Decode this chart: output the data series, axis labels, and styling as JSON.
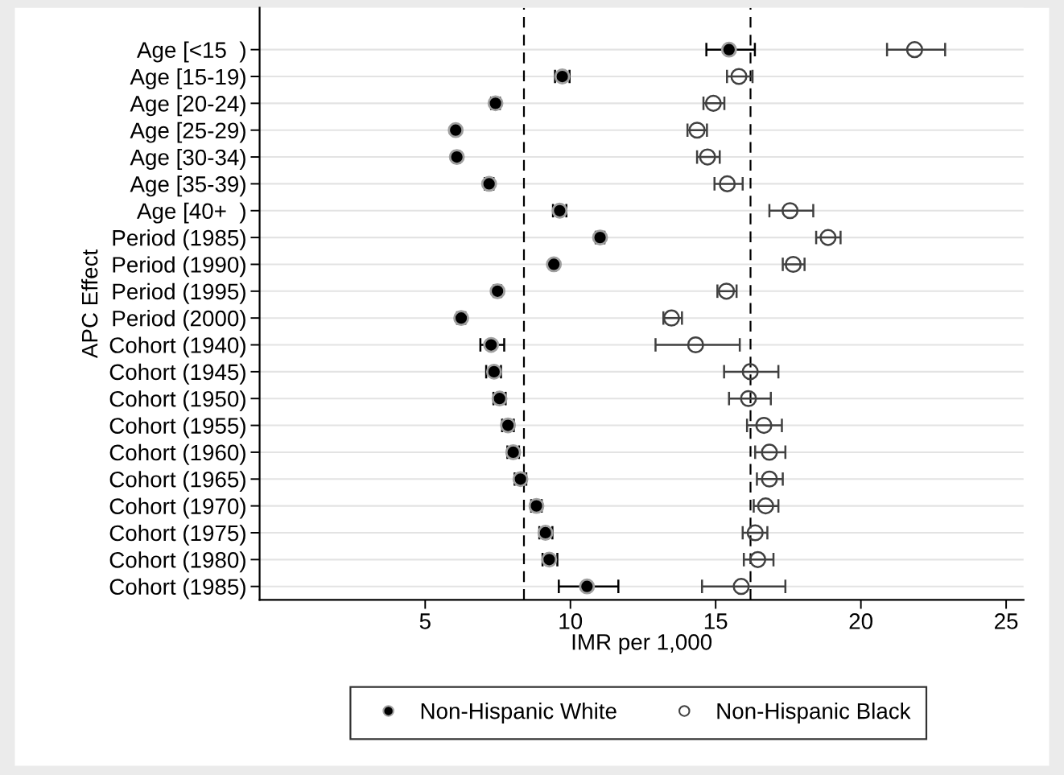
{
  "chart_data": {
    "type": "scatter",
    "orientation": "horizontal",
    "xlabel": "IMR per 1,000",
    "ylabel": "APC Effect",
    "categories": [
      "Age [<15  )",
      "Age [15-19)",
      "Age [20-24)",
      "Age [25-29)",
      "Age [30-34)",
      "Age [35-39)",
      "Age [40+  )",
      "Period (1985)",
      "Period (1990)",
      "Period (1995)",
      "Period (2000)",
      "Cohort (1940)",
      "Cohort (1945)",
      "Cohort (1950)",
      "Cohort (1955)",
      "Cohort (1960)",
      "Cohort (1965)",
      "Cohort (1970)",
      "Cohort (1975)",
      "Cohort (1980)",
      "Cohort (1985)"
    ],
    "series": [
      {
        "name": "Non-Hispanic White",
        "color": "#000000",
        "marker": "circle",
        "values": [
          15.46,
          9.72,
          7.42,
          6.05,
          6.09,
          7.2,
          9.63,
          11.02,
          9.43,
          7.49,
          6.24,
          7.27,
          7.37,
          7.56,
          7.85,
          8.03,
          8.28,
          8.83,
          9.14,
          9.27,
          10.57
        ],
        "errors": [
          [
            14.68,
            16.35
          ],
          [
            9.47,
            9.97
          ],
          [
            7.27,
            7.57
          ],
          [
            5.95,
            6.15
          ],
          [
            5.99,
            6.19
          ],
          [
            7.05,
            7.35
          ],
          [
            9.4,
            9.86
          ],
          [
            10.87,
            11.17
          ],
          [
            9.33,
            9.53
          ],
          [
            7.36,
            7.62
          ],
          [
            6.1,
            6.38
          ],
          [
            6.9,
            7.72
          ],
          [
            7.1,
            7.61
          ],
          [
            7.35,
            7.77
          ],
          [
            7.65,
            8.05
          ],
          [
            7.83,
            8.23
          ],
          [
            8.08,
            8.48
          ],
          [
            8.65,
            9.01
          ],
          [
            8.93,
            9.38
          ],
          [
            9.04,
            9.55
          ],
          [
            9.6,
            11.65
          ]
        ]
      },
      {
        "name": "Non-Hispanic Black",
        "color": "#404040",
        "marker": "circle_open",
        "values": [
          21.85,
          15.8,
          14.92,
          14.36,
          14.72,
          15.4,
          17.56,
          18.87,
          17.67,
          15.37,
          13.48,
          14.31,
          16.19,
          16.13,
          16.66,
          16.85,
          16.85,
          16.72,
          16.36,
          16.45,
          15.88
        ],
        "errors": [
          [
            20.9,
            22.9
          ],
          [
            15.39,
            16.27
          ],
          [
            14.58,
            15.3
          ],
          [
            14.03,
            14.7
          ],
          [
            14.36,
            15.14
          ],
          [
            14.96,
            15.93
          ],
          [
            16.85,
            18.36
          ],
          [
            18.46,
            19.3
          ],
          [
            17.31,
            18.06
          ],
          [
            15.06,
            15.72
          ],
          [
            13.2,
            13.84
          ],
          [
            12.93,
            15.83
          ],
          [
            15.29,
            17.16
          ],
          [
            15.46,
            16.9
          ],
          [
            16.08,
            17.28
          ],
          [
            16.36,
            17.4
          ],
          [
            16.42,
            17.31
          ],
          [
            16.31,
            17.16
          ],
          [
            15.93,
            16.78
          ],
          [
            15.97,
            16.99
          ],
          [
            14.53,
            17.4
          ]
        ]
      }
    ],
    "xlim": [
      -0.7,
      25.6
    ],
    "xticks": [
      5,
      10,
      15,
      20,
      25
    ],
    "ref_lines": [
      {
        "axis": "x",
        "value": 8.4,
        "color": "#000000",
        "line_style": "dashed"
      },
      {
        "axis": "x",
        "value": 16.2,
        "color": "#000000",
        "line_style": "dashed"
      }
    ],
    "grid": "y",
    "legend": "bottom"
  }
}
